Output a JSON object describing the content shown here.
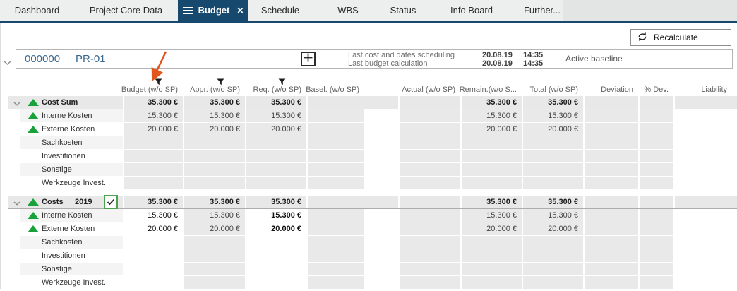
{
  "tabs": [
    {
      "label": "Dashboard",
      "active": false
    },
    {
      "label": "Project Core Data",
      "active": false
    },
    {
      "label": "Budget",
      "active": true
    },
    {
      "label": "Schedule",
      "active": false
    },
    {
      "label": "WBS",
      "active": false
    },
    {
      "label": "Status",
      "active": false
    },
    {
      "label": "Info Board",
      "active": false
    },
    {
      "label": "Further...",
      "active": false
    }
  ],
  "icons": {
    "close_glyph": "✕"
  },
  "toolbar": {
    "recalculate_label": "Recalculate"
  },
  "project": {
    "id": "000000",
    "name": "PR-01",
    "info": [
      {
        "label": "Last cost and dates scheduling",
        "date": "20.08.19",
        "time": "14:35"
      },
      {
        "label": "Last budget calculation",
        "date": "20.08.19",
        "time": "14:35"
      }
    ],
    "baseline": "Active baseline"
  },
  "table": {
    "columns": [
      {
        "key": "budget",
        "label": "Budget (w/o SP)",
        "filter": true
      },
      {
        "key": "appr",
        "label": "Appr. (w/o SP)",
        "filter": true
      },
      {
        "key": "req",
        "label": "Req. (w/o SP)",
        "filter": true
      },
      {
        "key": "basel",
        "label": "Basel. (w/o SP)",
        "filter": false
      },
      {
        "key": "actual",
        "label": "Actual (w/o SP)",
        "filter": false
      },
      {
        "key": "remain",
        "label": "Remain.(w/o S...",
        "filter": false
      },
      {
        "key": "total",
        "label": "Total (w/o SP)",
        "filter": false
      },
      {
        "key": "deviation",
        "label": "Deviation",
        "filter": false
      },
      {
        "key": "pdev",
        "label": "% Dev.",
        "filter": false
      },
      {
        "key": "liability",
        "label": "Liability",
        "filter": false
      }
    ],
    "groups": [
      {
        "header": {
          "label": "Cost Sum",
          "year": "",
          "checkbox": false,
          "values": {
            "budget": "35.300 €",
            "appr": "35.300 €",
            "req": "35.300 €",
            "remain": "35.300 €",
            "total": "35.300 €"
          }
        },
        "white_cells": [],
        "rows": [
          {
            "label": "Interne Kosten",
            "triangle": true,
            "values": {
              "budget": "15.300 €",
              "appr": "15.300 €",
              "req": "15.300 €",
              "remain": "15.300 €",
              "total": "15.300 €"
            }
          },
          {
            "label": "Externe Kosten",
            "triangle": true,
            "values": {
              "budget": "20.000 €",
              "appr": "20.000 €",
              "req": "20.000 €",
              "remain": "20.000 €",
              "total": "20.000 €"
            }
          },
          {
            "label": "Sachkosten",
            "triangle": false,
            "values": {}
          },
          {
            "label": "Investitionen",
            "triangle": false,
            "values": {}
          },
          {
            "label": "Sonstige",
            "triangle": false,
            "values": {}
          },
          {
            "label": "Werkzeuge Invest.",
            "triangle": false,
            "values": {}
          }
        ]
      },
      {
        "header": {
          "label": "Costs",
          "year": "2019",
          "checkbox": true,
          "values": {
            "budget": "35.300 €",
            "appr": "35.300 €",
            "req": "35.300 €",
            "remain": "35.300 €",
            "total": "35.300 €"
          }
        },
        "white_cells": [
          "budget",
          "req"
        ],
        "rows": [
          {
            "label": "Interne Kosten",
            "triangle": true,
            "values": {
              "budget": "15.300 €",
              "appr": "15.300 €",
              "req": "15.300 €",
              "remain": "15.300 €",
              "total": "15.300 €"
            }
          },
          {
            "label": "Externe Kosten",
            "triangle": true,
            "values": {
              "budget": "20.000 €",
              "appr": "20.000 €",
              "req": "20.000 €",
              "remain": "20.000 €",
              "total": "20.000 €"
            }
          },
          {
            "label": "Sachkosten",
            "triangle": false,
            "values": {}
          },
          {
            "label": "Investitionen",
            "triangle": false,
            "values": {}
          },
          {
            "label": "Sonstige",
            "triangle": false,
            "values": {}
          },
          {
            "label": "Werkzeuge Invest.",
            "triangle": false,
            "values": {}
          }
        ]
      }
    ]
  },
  "annotation": {
    "arrow_color": "#e2551c"
  }
}
